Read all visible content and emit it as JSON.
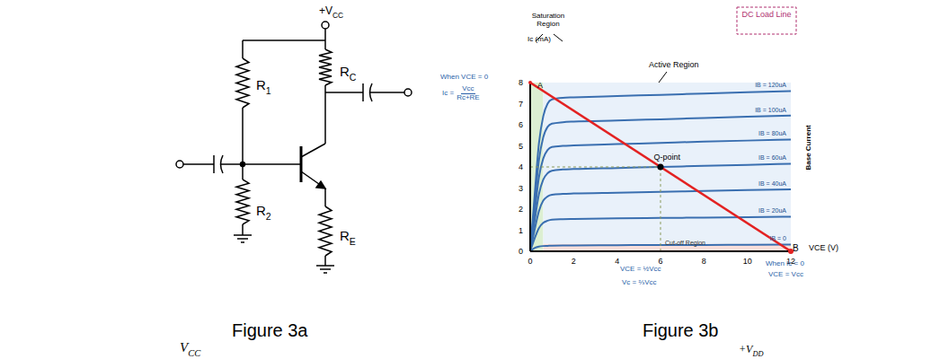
{
  "captions": [
    "Figure 3a",
    "Figure 3b"
  ],
  "circuit": {
    "supply": {
      "text": "+V",
      "sub": "CC"
    },
    "resistors": {
      "R1": {
        "text": "R",
        "sub": "1"
      },
      "RC": {
        "text": "R",
        "sub": "C"
      },
      "R2": {
        "text": "R",
        "sub": "2"
      },
      "RE": {
        "text": "R",
        "sub": "E"
      }
    }
  },
  "fragments": [
    {
      "text": "V",
      "sub": "CC"
    },
    {
      "text": "+V",
      "sub": "DD"
    }
  ],
  "chart_data": {
    "type": "line",
    "x_label": "VCE (V)",
    "y_label": "Ic (mA)",
    "side_label": "Base Current",
    "xlim": [
      0,
      12
    ],
    "xticks": [
      0,
      2,
      4,
      6,
      8,
      10,
      12
    ],
    "ylim": [
      0,
      8
    ],
    "yticks": [
      0,
      1,
      2,
      3,
      4,
      5,
      6,
      7,
      8
    ],
    "grid": false,
    "x": [
      0,
      0.2,
      0.4,
      0.6,
      0.8,
      1,
      1.5,
      2,
      4,
      6,
      8,
      10,
      12
    ],
    "series": [
      {
        "name": "IB = 0",
        "color": "#3a6fb0",
        "values": [
          0,
          0.15,
          0.22,
          0.25,
          0.26,
          0.27,
          0.28,
          0.28,
          0.29,
          0.3,
          0.3,
          0.31,
          0.32
        ]
      },
      {
        "name": "IB = 20uA",
        "color": "#3a6fb0",
        "values": [
          0,
          0.6,
          1.1,
          1.35,
          1.45,
          1.5,
          1.52,
          1.53,
          1.56,
          1.58,
          1.6,
          1.62,
          1.64
        ]
      },
      {
        "name": "IB = 40uA",
        "color": "#3a6fb0",
        "values": [
          0,
          1.0,
          1.9,
          2.4,
          2.6,
          2.68,
          2.72,
          2.74,
          2.78,
          2.82,
          2.86,
          2.9,
          2.94
        ]
      },
      {
        "name": "IB = 60uA",
        "color": "#3a6fb0",
        "values": [
          0,
          1.4,
          2.7,
          3.4,
          3.7,
          3.82,
          3.88,
          3.9,
          3.95,
          4.0,
          4.05,
          4.1,
          4.15
        ]
      },
      {
        "name": "IB = 80uA",
        "color": "#3a6fb0",
        "values": [
          0,
          1.8,
          3.5,
          4.4,
          4.8,
          4.95,
          5.0,
          5.02,
          5.08,
          5.14,
          5.2,
          5.25,
          5.3
        ]
      },
      {
        "name": "IB = 100uA",
        "color": "#3a6fb0",
        "values": [
          0,
          2.2,
          4.3,
          5.4,
          5.9,
          6.05,
          6.12,
          6.15,
          6.2,
          6.26,
          6.32,
          6.38,
          6.44
        ]
      },
      {
        "name": "IB = 120uA",
        "color": "#3a6fb0",
        "values": [
          0,
          2.6,
          5.1,
          6.4,
          7.0,
          7.2,
          7.28,
          7.3,
          7.36,
          7.42,
          7.48,
          7.54,
          7.6
        ]
      }
    ],
    "load_line": {
      "name": "DC Load Line",
      "color": "#e32222",
      "x": [
        0,
        12
      ],
      "values": [
        8,
        0
      ]
    },
    "points": [
      {
        "label": "A",
        "x": 0,
        "y": 8
      },
      {
        "label": "B",
        "x": 12,
        "y": 0
      },
      {
        "label": "Q-point",
        "x": 6,
        "y": 4
      }
    ],
    "regions": [
      {
        "name": "Saturation Region",
        "xlim": [
          0,
          0.6
        ],
        "ylim": [
          0,
          8
        ],
        "color": "#dcefd2"
      },
      {
        "name": "Active Region",
        "xlim": [
          0.6,
          12
        ],
        "ylim": [
          0.35,
          8
        ],
        "color": "#e9f1fa"
      },
      {
        "name": "Cut-off Region",
        "xlim": [
          0.6,
          12
        ],
        "ylim": [
          0,
          0.35
        ],
        "color": "#f9dfdb"
      }
    ],
    "annotations": {
      "left": [
        "When VCE = 0"
      ],
      "formula": {
        "lhs": "Ic =",
        "numerator": "Vcc",
        "denominator": "Rc+RE"
      },
      "bottom": [
        "VCE = ½Vcc",
        "Vc = ⅔Vcc"
      ],
      "right": [
        "When Ic = 0",
        "VCE = Vcc"
      ]
    }
  }
}
